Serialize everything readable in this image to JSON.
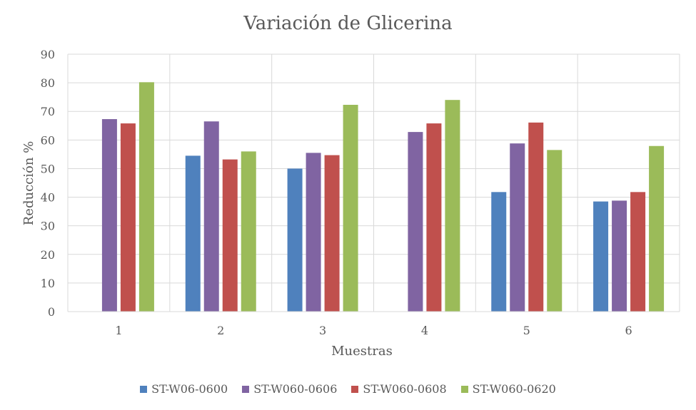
{
  "chart_data": {
    "type": "bar",
    "title": "Variación de Glicerina",
    "xlabel": "Muestras",
    "ylabel": "Reducción %",
    "ylim": [
      0,
      90
    ],
    "yticks": [
      0,
      10,
      20,
      30,
      40,
      50,
      60,
      70,
      80,
      90
    ],
    "categories": [
      "1",
      "2",
      "3",
      "4",
      "5",
      "6"
    ],
    "grid": true,
    "legend_position": "bottom",
    "series": [
      {
        "name": "ST-W06-0600",
        "color": "#4f81bd",
        "values": [
          null,
          54.5,
          50,
          null,
          41.8,
          38.5
        ]
      },
      {
        "name": "ST-W060-0606",
        "color": "#8064a2",
        "values": [
          67.3,
          66.5,
          55.5,
          62.8,
          58.8,
          38.8
        ]
      },
      {
        "name": "ST-W060-0608",
        "color": "#c0504d",
        "values": [
          65.8,
          53.2,
          54.7,
          65.8,
          66.1,
          41.8
        ]
      },
      {
        "name": "ST-W060-0620",
        "color": "#9bbb59",
        "values": [
          80.2,
          56,
          72.3,
          74,
          56.5,
          57.9
        ]
      }
    ]
  }
}
